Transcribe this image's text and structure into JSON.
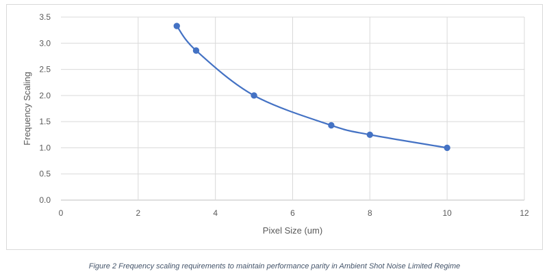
{
  "chart_data": {
    "type": "scatter",
    "title": "",
    "xlabel": "Pixel Size (um)",
    "ylabel": "Frequency Scaling",
    "xlim": [
      0,
      12
    ],
    "ylim": [
      0,
      3.5
    ],
    "x_ticks": [
      0,
      2,
      4,
      6,
      8,
      10,
      12
    ],
    "y_ticks": [
      "0.0",
      "0.5",
      "1.0",
      "1.5",
      "2.0",
      "2.5",
      "3.0",
      "3.5"
    ],
    "grid": true,
    "smooth_line": true,
    "series": [
      {
        "color": "#4472c4",
        "points": [
          {
            "x": 3,
            "y": 3.33
          },
          {
            "x": 3.5,
            "y": 2.86
          },
          {
            "x": 5,
            "y": 2.0
          },
          {
            "x": 7,
            "y": 1.43
          },
          {
            "x": 8,
            "y": 1.25
          },
          {
            "x": 10,
            "y": 1.0
          }
        ]
      }
    ]
  },
  "caption": "Figure 2 Frequency scaling requirements to maintain performance parity in Ambient Shot Noise Limited Regime",
  "colors": {
    "grid": "#d9d9d9",
    "axis": "#bfbfbf",
    "text": "#595959",
    "caption": "#44546a"
  }
}
